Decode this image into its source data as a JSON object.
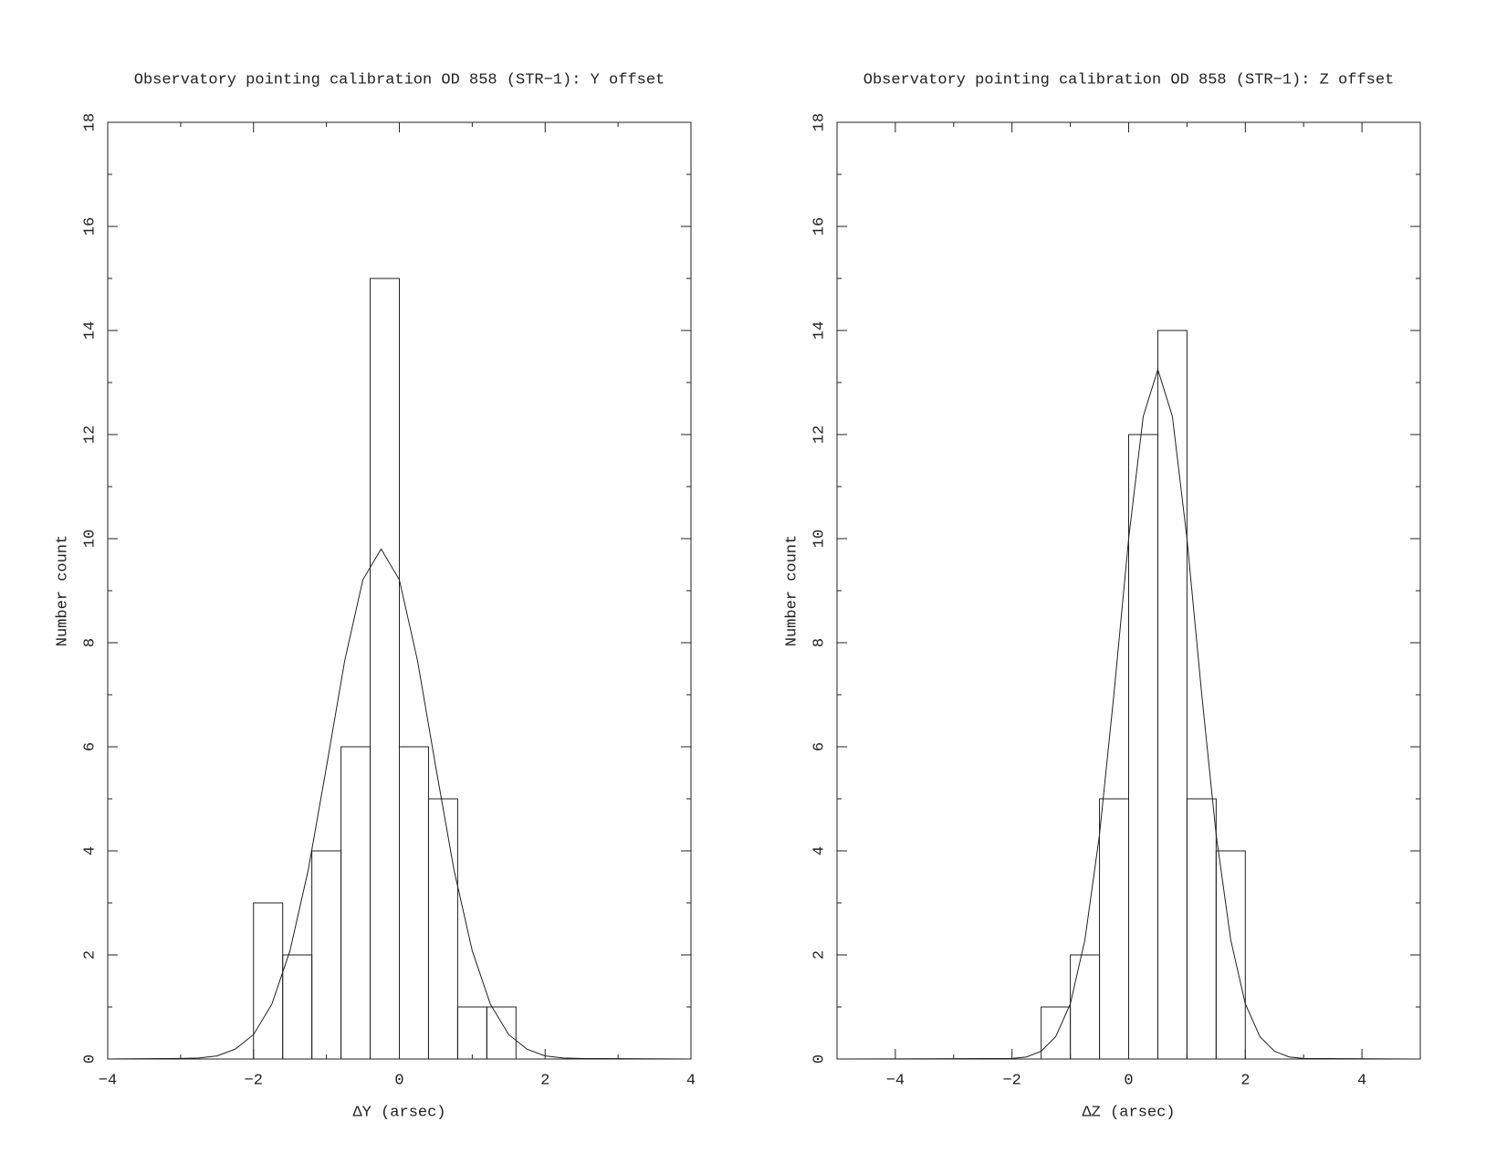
{
  "chart_data": [
    {
      "type": "histogram",
      "title": "Observatory pointing calibration OD 858 (STR−1): Y offset",
      "xlabel": "ΔY (arsec)",
      "ylabel": "Number count",
      "bins": [
        -2,
        -1.6,
        -1.2,
        -0.8,
        -0.4,
        0,
        0.4,
        0.8,
        1.2,
        1.6
      ],
      "values": [
        3,
        2,
        4,
        6,
        15,
        6,
        5,
        1,
        1
      ],
      "fit": {
        "x": [
          -4,
          -3,
          -2.75,
          -2.5,
          -2.25,
          -2,
          -1.75,
          -1.5,
          -1.25,
          -1,
          -0.75,
          -0.5,
          -0.25,
          0,
          0.25,
          0.5,
          0.75,
          1,
          1.25,
          1.5,
          1.75,
          2,
          2.25,
          2.5,
          4
        ],
        "values": [
          0,
          0.01,
          0.02,
          0.06,
          0.19,
          0.47,
          1.05,
          2.08,
          3.63,
          5.61,
          7.65,
          9.21,
          9.8,
          9.21,
          7.65,
          5.61,
          3.63,
          2.08,
          1.05,
          0.47,
          0.19,
          0.06,
          0.02,
          0.01,
          0
        ]
      },
      "xlim": [
        -4,
        4
      ],
      "xticks": [
        {
          "value": -4,
          "label": "−4"
        },
        {
          "value": -2,
          "label": "−2"
        },
        0,
        2,
        4
      ],
      "xminorticks": [
        -3,
        -1,
        1,
        3
      ],
      "ylim": [
        0,
        18
      ],
      "yticks": [
        0,
        2,
        4,
        6,
        8,
        10,
        12,
        14,
        16,
        18
      ],
      "yminorticks": [
        1,
        3,
        5,
        7,
        9,
        11,
        13,
        15,
        17
      ]
    },
    {
      "type": "histogram",
      "title": "Observatory pointing calibration OD 858 (STR−1): Z offset",
      "xlabel": "ΔZ (arsec)",
      "ylabel": "Number count",
      "bins": [
        -1.5,
        -1,
        -0.5,
        0,
        0.5,
        1,
        1.5,
        2
      ],
      "values": [
        1,
        2,
        5,
        12,
        14,
        5,
        4
      ],
      "fit": {
        "x": [
          -5,
          -2,
          -1.75,
          -1.5,
          -1.25,
          -1,
          -0.75,
          -0.5,
          -0.25,
          0,
          0.25,
          0.5,
          0.75,
          1,
          1.25,
          1.5,
          1.75,
          2,
          2.25,
          2.5,
          2.75,
          3,
          5
        ],
        "values": [
          0,
          0.01,
          0.04,
          0.15,
          0.43,
          1.06,
          2.29,
          4.31,
          7.04,
          10.0,
          12.35,
          13.25,
          12.35,
          10.0,
          7.04,
          4.31,
          2.29,
          1.06,
          0.43,
          0.15,
          0.04,
          0.01,
          0
        ]
      },
      "xlim": [
        -5,
        5
      ],
      "xticks": [
        {
          "value": -4,
          "label": "−4"
        },
        {
          "value": -2,
          "label": "−2"
        },
        0,
        2,
        4
      ],
      "xminorticks": [
        -3,
        -1,
        1,
        3
      ],
      "ylim": [
        0,
        18
      ],
      "yticks": [
        0,
        2,
        4,
        6,
        8,
        10,
        12,
        14,
        16,
        18
      ],
      "yminorticks": [
        1,
        3,
        5,
        7,
        9,
        11,
        13,
        15,
        17
      ]
    }
  ]
}
